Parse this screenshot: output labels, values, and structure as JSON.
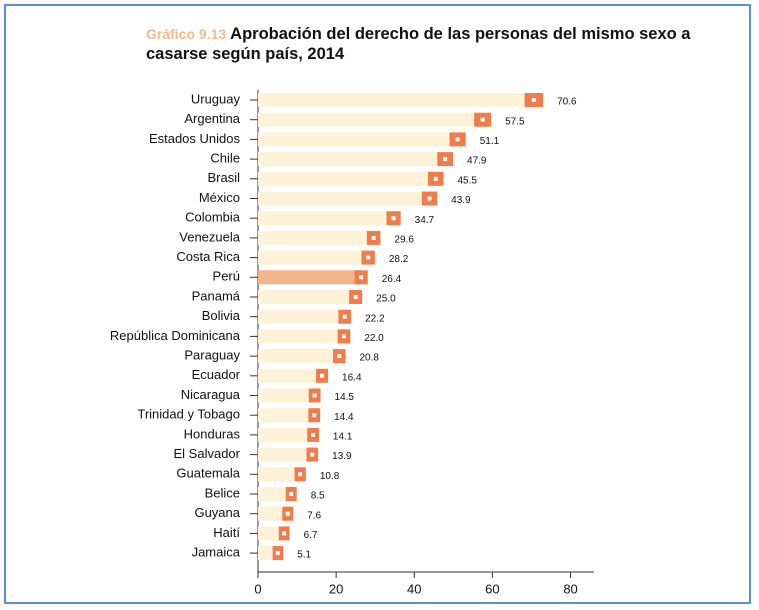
{
  "chart_data": {
    "type": "dotbar",
    "label": "Gráfico 9.13",
    "title": "Aprobación del derecho de las personas del mismo sexo a casarse según país, 2014",
    "categories": [
      "Uruguay",
      "Argentina",
      "Estados Unidos",
      "Chile",
      "Brasil",
      "México",
      "Colombia",
      "Venezuela",
      "Costa Rica",
      "Perú",
      "Panamá",
      "Bolivia",
      "República Dominicana",
      "Paraguay",
      "Ecuador",
      "Nicaragua",
      "Trinidad y Tobago",
      "Honduras",
      "El Salvador",
      "Guatemala",
      "Belice",
      "Guyana",
      "Haití",
      "Jamaica"
    ],
    "values": [
      70.6,
      57.5,
      51.1,
      47.9,
      45.5,
      43.9,
      34.7,
      29.6,
      28.2,
      26.4,
      25.0,
      22.2,
      22.0,
      20.8,
      16.4,
      14.5,
      14.4,
      14.1,
      13.9,
      10.8,
      8.5,
      7.6,
      6.7,
      5.1
    ],
    "value_labels": [
      "70.6",
      "57.5",
      "51.1",
      "47.9",
      "45.5",
      "43.9",
      "34.7",
      "29.6",
      "28.2",
      "26.4",
      "25.0",
      "22.2",
      "22.0",
      "20.8",
      "16.4",
      "14.5",
      "14.4",
      "14.1",
      "13.9",
      "10.8",
      "8.5",
      "7.6",
      "6.7",
      "5.1"
    ],
    "highlight": "Perú",
    "bar_color": "#fdf1d8",
    "highlight_color": "#f6b48a",
    "color": "#f07c4a",
    "xlim": [
      0,
      86
    ],
    "xticks": [
      0,
      20,
      40,
      60,
      80
    ]
  }
}
